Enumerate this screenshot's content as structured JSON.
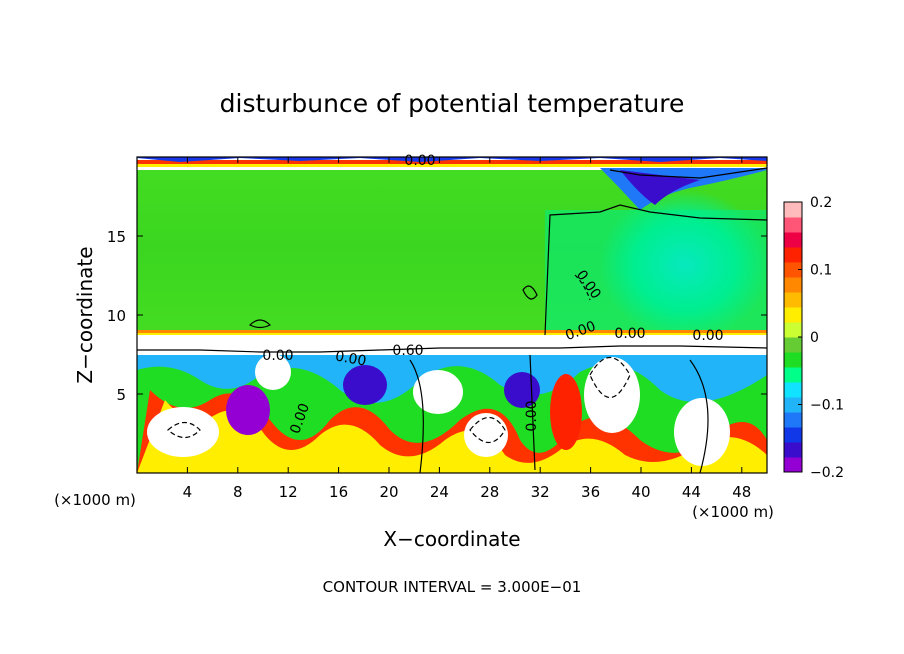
{
  "chart_data": {
    "type": "heatmap",
    "title": "disturbunce of potential temperature",
    "xlabel": "X−coordinate",
    "ylabel": "Z−coordinate",
    "x_unit": "(×1000 m)",
    "xlim": [
      0,
      50
    ],
    "ylim": [
      0,
      20
    ],
    "x_ticks": [
      4,
      8,
      12,
      16,
      20,
      24,
      28,
      32,
      36,
      40,
      44,
      48
    ],
    "x_tick_labels": [
      "4",
      "8",
      "12",
      "16",
      "20",
      "24",
      "28",
      "32",
      "36",
      "40",
      "44",
      "48"
    ],
    "y_ticks": [
      5,
      10,
      15
    ],
    "y_tick_labels": [
      "5",
      "10",
      "15"
    ],
    "colorbar": {
      "min": -0.2,
      "max": 0.2,
      "ticks": [
        0.2,
        0.1,
        0,
        -0.1,
        -0.2
      ],
      "tick_labels": [
        "0.2",
        "0.1",
        "0",
        "−0.1",
        "−0.2"
      ],
      "colors": [
        "#9400d3",
        "#3a0ccc",
        "#1038e8",
        "#1e78f8",
        "#22b4f8",
        "#10e2ff",
        "#00ff88",
        "#1fdd22",
        "#66cc33",
        "#ccff33",
        "#ffee00",
        "#ffbb00",
        "#ff8800",
        "#ff5500",
        "#ff2200",
        "#ee0044",
        "#ff5577",
        "#ffbbbb"
      ]
    },
    "contour_labels": [
      "0.00",
      "0.00",
      "0.00",
      "0.00",
      "0.60",
      "0.00",
      "0.00",
      "0.00",
      "0.00",
      "0.00"
    ],
    "footer": "CONTOUR INTERVAL = 3.000E−01",
    "grid": false
  }
}
